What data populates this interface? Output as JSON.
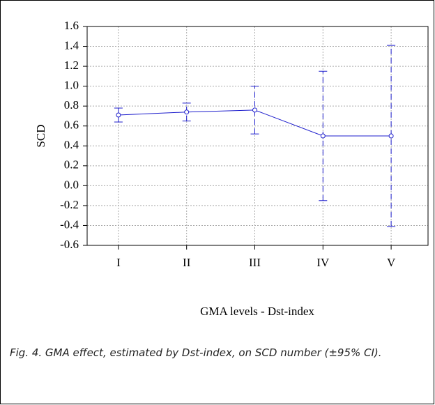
{
  "chart_data": {
    "type": "line_errorbar",
    "ylabel": "SCD",
    "xlabel": "GMA levels - Dst-index",
    "caption": "Fig. 4. GMA effect, estimated by Dst-index, on SCD number (±95% CI).",
    "categories": [
      "I",
      "II",
      "III",
      "IV",
      "V"
    ],
    "series": [
      {
        "color": "#1c1ccc",
        "values": [
          0.71,
          0.74,
          0.76,
          0.5,
          0.5
        ],
        "errors": [
          0.07,
          0.09,
          0.24,
          0.65,
          0.91
        ]
      }
    ],
    "ylim": [
      -0.6,
      1.6
    ],
    "yticks": [
      -0.6,
      -0.4,
      -0.2,
      {
        "value": 0,
        "label": "0.0"
      },
      0.2,
      0.4,
      0.6,
      0.8,
      {
        "value": 1,
        "label": "1.0"
      },
      1.2,
      1.4,
      1.6
    ],
    "grid": true
  }
}
